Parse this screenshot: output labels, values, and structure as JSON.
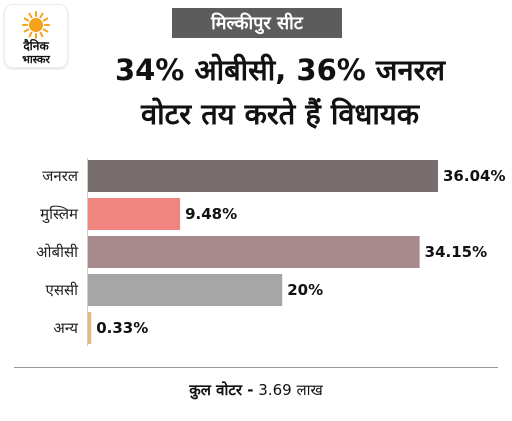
{
  "logo": {
    "line1": "दैनिक",
    "line2": "भास्कर",
    "sun_color": "#f7a11a"
  },
  "badge": {
    "text": "मिल्कीपुर सीट"
  },
  "headline": {
    "line1": "34% ओबीसी, 36% जनरल",
    "line2": "वोटर तय करते हैं विधायक"
  },
  "chart_data": {
    "type": "bar",
    "orientation": "horizontal",
    "categories": [
      "जनरल",
      "मुस्लिम",
      "ओबीसी",
      "एससी",
      "अन्य"
    ],
    "values": [
      36.04,
      9.48,
      34.15,
      20,
      0.33
    ],
    "value_labels": [
      "36.04%",
      "9.48%",
      "34.15%",
      "20%",
      "0.33%"
    ],
    "colors": [
      "#786e6e",
      "#f0857f",
      "#a88a8c",
      "#a6a6a6",
      "#e6b87a"
    ],
    "xlim": [
      0,
      36.04
    ],
    "grid": false,
    "title": "",
    "xlabel": "",
    "ylabel": ""
  },
  "footer": {
    "label": "कुल वोटर -",
    "value": "3.69 लाख"
  }
}
